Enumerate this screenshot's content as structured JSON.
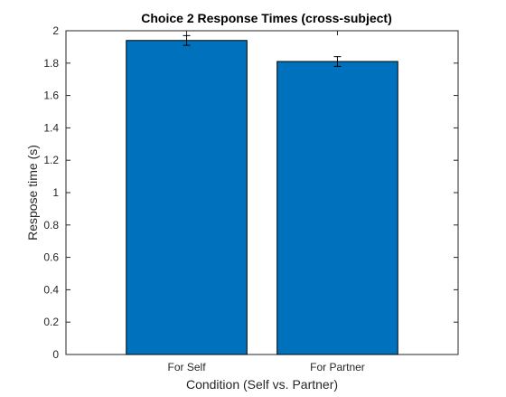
{
  "chart_data": {
    "type": "bar",
    "title": "Choice 2 Response Times (cross-subject)",
    "xlabel": "Condition (Self vs. Partner)",
    "ylabel": "Respose time (s)",
    "categories": [
      "For Self",
      "For Partner"
    ],
    "values": [
      1.94,
      1.81
    ],
    "errors": [
      0.03,
      0.03
    ],
    "ylim": [
      0,
      2
    ],
    "yticks": [
      "0",
      "0.2",
      "0.4",
      "0.6",
      "0.8",
      "1",
      "1.2",
      "1.4",
      "1.6",
      "1.8",
      "2"
    ],
    "grid": false,
    "bar_color": "#0072BD",
    "bar_edge_color": "#000000"
  }
}
